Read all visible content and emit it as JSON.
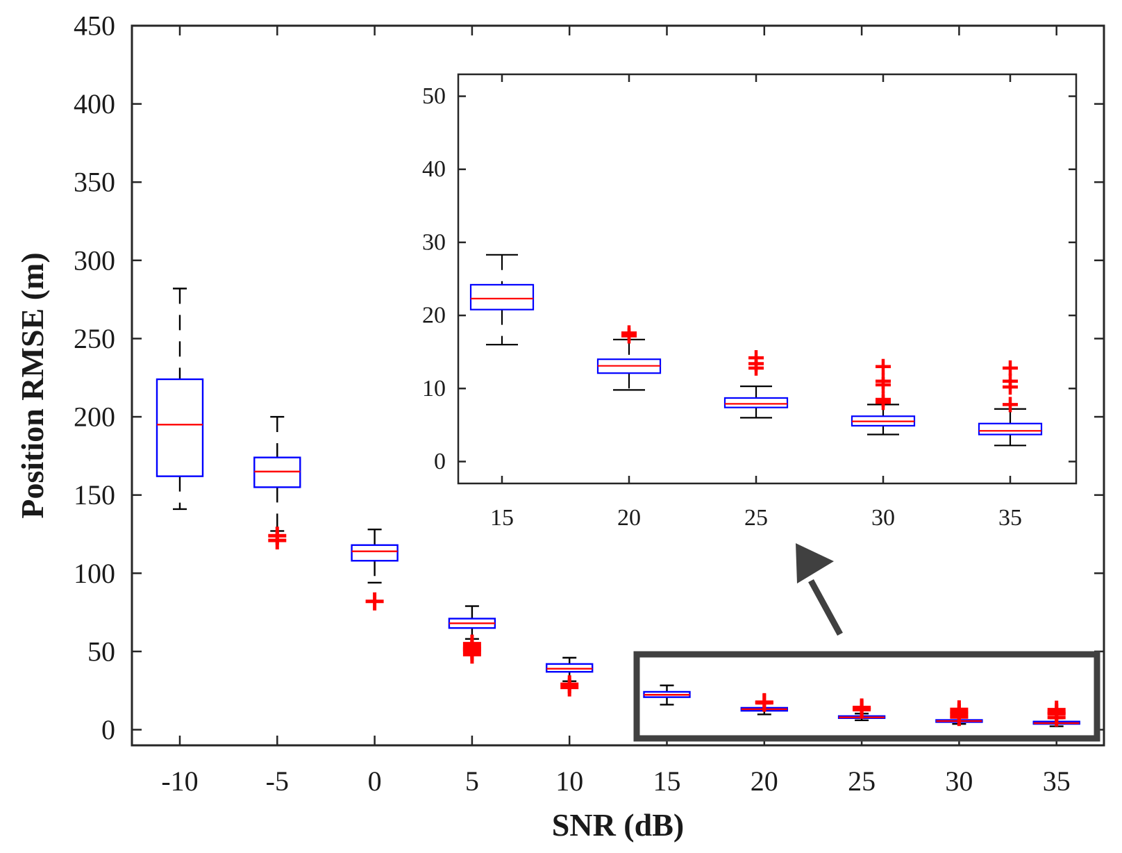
{
  "chart_data": [
    {
      "id": "main",
      "type": "box",
      "xlabel": "SNR (dB)",
      "ylabel": "Position RMSE (m)",
      "ylim": [
        -10,
        450
      ],
      "yticks": [
        0,
        50,
        100,
        150,
        200,
        250,
        300,
        350,
        400,
        450
      ],
      "categories": [
        "-10",
        "-5",
        "0",
        "5",
        "10",
        "15",
        "20",
        "25",
        "30",
        "35"
      ],
      "boxes": [
        {
          "category": "-10",
          "whisker_low": 141,
          "q1": 162,
          "median": 195,
          "q3": 224,
          "whisker_high": 282,
          "outliers": []
        },
        {
          "category": "-5",
          "whisker_low": 127,
          "q1": 155,
          "median": 165,
          "q3": 174,
          "whisker_high": 200,
          "outliers": [
            124,
            121
          ]
        },
        {
          "category": "0",
          "whisker_low": 94,
          "q1": 108,
          "median": 114,
          "q3": 118,
          "whisker_high": 128,
          "outliers": [
            82
          ]
        },
        {
          "category": "5",
          "whisker_low": 58,
          "q1": 65,
          "median": 68,
          "q3": 71,
          "whisker_high": 79,
          "outliers": [
            55,
            53,
            52,
            51,
            50,
            48
          ]
        },
        {
          "category": "10",
          "whisker_low": 31,
          "q1": 37,
          "median": 39,
          "q3": 42,
          "whisker_high": 46,
          "outliers": [
            29,
            27
          ]
        },
        {
          "category": "15",
          "whisker_low": 16,
          "q1": 20.8,
          "median": 22.3,
          "q3": 24.2,
          "whisker_high": 28.3,
          "outliers": []
        },
        {
          "category": "20",
          "whisker_low": 9.8,
          "q1": 12.1,
          "median": 13.1,
          "q3": 14,
          "whisker_high": 16.7,
          "outliers": [
            17.2,
            17.6
          ]
        },
        {
          "category": "25",
          "whisker_low": 6,
          "q1": 7.4,
          "median": 7.9,
          "q3": 8.7,
          "whisker_high": 10.3,
          "outliers": [
            12.8,
            13.4,
            14.2
          ]
        },
        {
          "category": "30",
          "whisker_low": 3.7,
          "q1": 4.9,
          "median": 5.5,
          "q3": 6.2,
          "whisker_high": 7.8,
          "outliers": [
            8.1,
            8.5,
            10.5,
            11,
            13
          ]
        },
        {
          "category": "35",
          "whisker_low": 2.2,
          "q1": 3.7,
          "median": 4.2,
          "q3": 5.2,
          "whisker_high": 7.2,
          "outliers": [
            7.8,
            10.2,
            11,
            12.8
          ]
        }
      ]
    },
    {
      "id": "inset",
      "type": "box",
      "xlabel": "",
      "ylabel": "",
      "ylim": [
        -3,
        53
      ],
      "yticks": [
        0,
        10,
        20,
        30,
        40,
        50
      ],
      "categories": [
        "15",
        "20",
        "25",
        "30",
        "35"
      ],
      "boxes": [
        {
          "category": "15",
          "whisker_low": 16,
          "q1": 20.8,
          "median": 22.3,
          "q3": 24.2,
          "whisker_high": 28.3,
          "outliers": []
        },
        {
          "category": "20",
          "whisker_low": 9.8,
          "q1": 12.1,
          "median": 13.1,
          "q3": 14,
          "whisker_high": 16.7,
          "outliers": [
            17.2,
            17.6
          ]
        },
        {
          "category": "25",
          "whisker_low": 6,
          "q1": 7.4,
          "median": 7.9,
          "q3": 8.7,
          "whisker_high": 10.3,
          "outliers": [
            12.8,
            13.4,
            14.2
          ]
        },
        {
          "category": "30",
          "whisker_low": 3.7,
          "q1": 4.9,
          "median": 5.5,
          "q3": 6.2,
          "whisker_high": 7.8,
          "outliers": [
            8.1,
            8.5,
            10.5,
            11,
            13
          ]
        },
        {
          "category": "35",
          "whisker_low": 2.2,
          "q1": 3.7,
          "median": 4.2,
          "q3": 5.2,
          "whisker_high": 7.2,
          "outliers": [
            7.8,
            10.2,
            11,
            12.8
          ]
        }
      ]
    }
  ],
  "colors": {
    "box": "#0000ff",
    "median": "#ff0000",
    "whisker": "#000000",
    "outlier": "#ff0000",
    "axes": "#262626",
    "highlight": "#404040"
  }
}
